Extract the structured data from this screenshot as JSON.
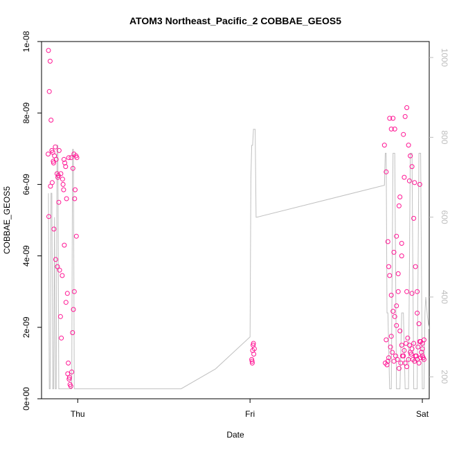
{
  "chart_data": {
    "type": "scatter",
    "title": "ATOM3 Northeast_Pacific_2 COBBAE_GEOS5",
    "xlabel": "Date",
    "ylabel": "COBBAE_GEOS5",
    "x_tick_labels": [
      "Thu",
      "Fri",
      "Sat"
    ],
    "x_tick_values": [
      0.0,
      1.0,
      2.0
    ],
    "xlim": [
      -0.21,
      2.04
    ],
    "y_tick_labels": [
      "0e+00",
      "2e-09",
      "4e-09",
      "6e-09",
      "8e-09",
      "1e-08"
    ],
    "y_tick_values": [
      0,
      2e-09,
      4e-09,
      6e-09,
      8e-09,
      1e-08
    ],
    "ylim": [
      0,
      1e-08
    ],
    "y2_tick_labels": [
      "200",
      "400",
      "600",
      "800",
      "1000"
    ],
    "y2_tick_values": [
      200,
      400,
      600,
      800,
      1000
    ],
    "y2lim": [
      1040,
      145
    ],
    "y2_reversed": true,
    "colors": {
      "points": "#ff1493",
      "pressure_line": "#c0c0c0",
      "axis": "#000000",
      "right_axis": "#bdbdbd"
    },
    "grid": false,
    "series": [
      {
        "role": "points",
        "x": [
          -0.17,
          -0.165,
          -0.16,
          -0.155,
          -0.15,
          -0.145,
          -0.14,
          -0.135,
          -0.13,
          -0.125,
          -0.12,
          -0.115,
          -0.11,
          -0.105,
          -0.1,
          -0.095,
          -0.09,
          -0.085,
          -0.08,
          -0.075,
          -0.07,
          -0.065,
          -0.06,
          -0.055,
          -0.05,
          -0.045,
          -0.04,
          -0.035,
          -0.03,
          -0.025,
          -0.02,
          -0.015,
          -0.01,
          -0.005,
          -0.168,
          -0.158,
          -0.148,
          -0.138,
          -0.128,
          -0.118,
          -0.108,
          -0.098,
          -0.088,
          -0.078,
          -0.068,
          -0.058,
          -0.048,
          -0.038,
          -0.028,
          -0.018,
          -0.008,
          -0.172,
          -0.142,
          -0.112,
          -0.082,
          -0.052,
          -0.022,
          1.01,
          1.012,
          1.015,
          1.018,
          1.02,
          1.022,
          1.025,
          1.013,
          1.78,
          1.79,
          1.8,
          1.81,
          1.82,
          1.83,
          1.84,
          1.85,
          1.86,
          1.87,
          1.88,
          1.89,
          1.9,
          1.91,
          1.92,
          1.93,
          1.94,
          1.95,
          1.96,
          1.97,
          1.98,
          1.99,
          2.0,
          2.01,
          1.785,
          1.795,
          1.805,
          1.815,
          1.825,
          1.835,
          1.845,
          1.855,
          1.865,
          1.875,
          1.885,
          1.895,
          1.905,
          1.915,
          1.925,
          1.935,
          1.945,
          1.955,
          1.965,
          1.975,
          1.985,
          1.995,
          2.005,
          1.8,
          1.81,
          1.82,
          1.83,
          1.84,
          1.85,
          1.86,
          1.87,
          1.88,
          1.89,
          1.9,
          1.91,
          1.92,
          1.93,
          1.94,
          1.95,
          1.96,
          1.97,
          1.98,
          1.99,
          2.0,
          2.01,
          1.805,
          1.835,
          1.865,
          1.895,
          1.925,
          1.955,
          1.985,
          1.79,
          1.82,
          1.85,
          1.88,
          1.91,
          1.94,
          1.97,
          2.0
        ],
        "y": [
          9.75e-09,
          8.6e-09,
          9.45e-09,
          7.8e-09,
          6.95e-09,
          6.9e-09,
          6.6e-09,
          6.8e-09,
          7.05e-09,
          6.7e-09,
          6.3e-09,
          6.2e-09,
          5.5e-09,
          3.6e-09,
          2.3e-09,
          1.7e-09,
          3.45e-09,
          6e-09,
          6.7e-09,
          6.6e-09,
          6.5e-09,
          5.6e-09,
          2.95e-09,
          1e-09,
          5.5e-10,
          4e-10,
          3.5e-10,
          7.5e-10,
          1.85e-09,
          2.5e-09,
          3e-09,
          5.85e-09,
          6.8e-09,
          6.75e-09,
          5.1e-09,
          5.95e-09,
          6.05e-09,
          4.75e-09,
          3.9e-09,
          3.7e-09,
          6.95e-09,
          6.3e-09,
          6.15e-09,
          4.3e-09,
          2.7e-09,
          7e-10,
          6e-10,
          6.75e-09,
          6.45e-09,
          5.6e-09,
          4.55e-09,
          6.85e-09,
          6.65e-09,
          6.25e-09,
          5.85e-09,
          6.75e-09,
          6.85e-09,
          1.1e-09,
          1.05e-09,
          1.35e-09,
          1.5e-09,
          1.55e-09,
          1.25e-09,
          1.4e-09,
          1e-09,
          7.1e-09,
          6.35e-09,
          4.4e-09,
          3.45e-09,
          2.9e-09,
          2.45e-09,
          2.3e-09,
          2.6e-09,
          3.5e-09,
          5.65e-09,
          4.35e-09,
          7.4e-09,
          7.9e-09,
          8.15e-09,
          7.1e-09,
          6.8e-09,
          6.5e-09,
          5.05e-09,
          3.7e-09,
          3e-09,
          2.1e-09,
          1.6e-09,
          1.2e-09,
          1.1e-09,
          1e-09,
          9.5e-10,
          1.15e-09,
          1.45e-09,
          1.3e-09,
          1.05e-09,
          1.2e-09,
          1.1e-09,
          8.5e-10,
          1e-09,
          1.2e-09,
          1.35e-09,
          1.55e-09,
          1.7e-09,
          1.5e-09,
          1.25e-09,
          1.1e-09,
          1.05e-09,
          1.2e-09,
          1.45e-09,
          1.6e-09,
          1.3e-09,
          1.15e-09,
          1.05e-09,
          7.85e-09,
          7.55e-09,
          7.85e-09,
          7.55e-09,
          4.55e-09,
          3e-09,
          1.9e-09,
          1.5e-09,
          1.2e-09,
          1e-09,
          9e-10,
          1.1e-09,
          1.3e-09,
          1.4e-09,
          1.55e-09,
          1.2e-09,
          1.1e-09,
          1e-09,
          1.15e-09,
          1.4e-09,
          1.65e-09,
          3.7e-09,
          4.1e-09,
          5.4e-09,
          6.2e-09,
          6.1e-09,
          6.05e-09,
          6e-09,
          1.65e-09,
          1.75e-09,
          2.05e-09,
          4e-09,
          3e-09,
          2.95e-09,
          2.4e-09,
          1.55e-09
        ]
      },
      {
        "role": "pressure_line",
        "x": [
          -0.17,
          -0.165,
          -0.16,
          -0.155,
          -0.15,
          -0.145,
          -0.14,
          -0.135,
          -0.13,
          -0.125,
          -0.12,
          -0.115,
          -0.11,
          -0.105,
          -0.1,
          -0.095,
          -0.09,
          -0.085,
          -0.08,
          -0.075,
          -0.07,
          -0.065,
          -0.06,
          -0.055,
          -0.05,
          -0.045,
          -0.04,
          -0.035,
          -0.03,
          -0.025,
          -0.02,
          -0.015,
          -0.01,
          0.0,
          0.6,
          0.8,
          1.0,
          1.005,
          1.01,
          1.015,
          1.02,
          1.025,
          1.03,
          1.035,
          1.04,
          1.78,
          1.785,
          1.79,
          1.795,
          1.8,
          1.81,
          1.82,
          1.83,
          1.84,
          1.85,
          1.86,
          1.87,
          1.88,
          1.89,
          1.9,
          1.91,
          1.92,
          1.93,
          1.94,
          1.95,
          1.96,
          1.97,
          1.98,
          1.99,
          2.0,
          2.01,
          2.015,
          2.02,
          2.03,
          2.04
        ],
        "y": [
          660,
          170,
          170,
          660,
          660,
          170,
          170,
          600,
          170,
          170,
          780,
          780,
          170,
          170,
          170,
          170,
          170,
          170,
          170,
          170,
          170,
          170,
          170,
          170,
          170,
          170,
          170,
          170,
          770,
          770,
          170,
          170,
          170,
          170,
          170,
          220,
          300,
          700,
          780,
          780,
          820,
          820,
          820,
          600,
          600,
          680,
          760,
          760,
          360,
          360,
          170,
          170,
          760,
          760,
          170,
          170,
          170,
          360,
          360,
          170,
          170,
          170,
          760,
          760,
          170,
          170,
          170,
          760,
          760,
          170,
          170,
          360,
          400,
          350,
          320
        ]
      }
    ]
  }
}
